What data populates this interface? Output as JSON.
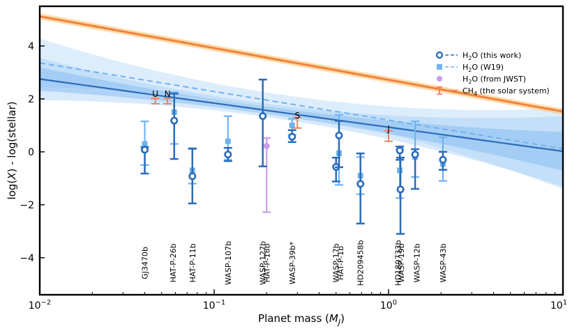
{
  "chart_data": {
    "type": "scatter",
    "xscale": "log",
    "xlim": [
      0.01,
      10
    ],
    "ylim": [
      -5.4,
      5.5
    ],
    "xlabel": "Planet mass (M_J)",
    "xlabel_parts": {
      "prefix": "Planet mass (",
      "var": "M",
      "sub": "J",
      "suffix": ")"
    },
    "ylabel": "log(X) - log(stellar)",
    "ylabel_parts": {
      "prefix": "log(",
      "var": "X",
      "suffix": ") - log(stellar)"
    },
    "xticks": [
      {
        "value": 0.01,
        "base": "10",
        "exp": "−2"
      },
      {
        "value": 0.1,
        "base": "10",
        "exp": "−1"
      },
      {
        "value": 1,
        "base": "10",
        "exp": "0"
      },
      {
        "value": 10,
        "base": "10",
        "exp": "1"
      }
    ],
    "yticks": [
      {
        "value": 4,
        "label": "4"
      },
      {
        "value": 2,
        "label": "2"
      },
      {
        "value": 0,
        "label": "0"
      },
      {
        "value": -2,
        "label": "−2"
      },
      {
        "value": -4,
        "label": "−4"
      }
    ],
    "legend": {
      "position": "top-right",
      "entries": [
        {
          "key": "this_work",
          "label_main": "H",
          "label_sub": "2",
          "label_rest": "O (this work)"
        },
        {
          "key": "w19",
          "label_main": "H",
          "label_sub": "2",
          "label_rest": "O (W19)"
        },
        {
          "key": "jwst",
          "label_main": "H",
          "label_sub": "2",
          "label_rest": "O (from JWST)"
        },
        {
          "key": "solar",
          "label_main": "CH",
          "label_sub": "4",
          "label_rest": " (the solar system)"
        }
      ]
    },
    "colors": {
      "this_work": "#2b6cb8",
      "w19": "#6fb2f0",
      "jwst": "#c89cf0",
      "solar": "#f08060",
      "fit_solar": "#f07a3c",
      "band_solar": "#fcc97a",
      "band_blue": "#9ecbf5"
    },
    "fits": {
      "this_work": {
        "slope": -0.91,
        "intercept": 0.93
      },
      "w19": {
        "slope": -1.08,
        "intercept": 1.2
      },
      "solar": {
        "slope": -1.2,
        "intercept": 2.72
      }
    },
    "this_work_points": [
      {
        "x": 0.04,
        "y": 0.08,
        "yerr_low": 0.9,
        "yerr_high": 0.1
      },
      {
        "x": 0.059,
        "y": 1.18,
        "yerr_low": 1.45,
        "yerr_high": 1.02
      },
      {
        "x": 0.075,
        "y": -0.92,
        "yerr_low": 1.03,
        "yerr_high": 1.05
      },
      {
        "x": 0.12,
        "y": -0.1,
        "yerr_low": 0.25,
        "yerr_high": 0.25
      },
      {
        "x": 0.19,
        "y": 1.35,
        "yerr_low": 1.9,
        "yerr_high": 1.38
      },
      {
        "x": 0.28,
        "y": 0.57,
        "yerr_low": 0.2,
        "yerr_high": 0.25
      },
      {
        "x": 0.5,
        "y": -0.57,
        "yerr_low": 0.55,
        "yerr_high": 0.35
      },
      {
        "x": 0.52,
        "y": 0.62,
        "yerr_low": 1.2,
        "yerr_high": 0.55
      },
      {
        "x": 0.69,
        "y": -1.21,
        "yerr_low": 1.5,
        "yerr_high": 1.15
      },
      {
        "x": 1.16,
        "y": 0.05,
        "yerr_low": 0.35,
        "yerr_high": 0.15
      },
      {
        "x": 1.17,
        "y": -1.42,
        "yerr_low": 1.68,
        "yerr_high": 1.2
      },
      {
        "x": 1.42,
        "y": -0.1,
        "yerr_low": 1.3,
        "yerr_high": 0.2
      },
      {
        "x": 2.05,
        "y": -0.3,
        "yerr_low": 0.38,
        "yerr_high": 0.3
      }
    ],
    "w19_points": [
      {
        "x": 0.04,
        "y": 0.3,
        "yerr_low": 0.8,
        "yerr_high": 0.85
      },
      {
        "x": 0.059,
        "y": 1.5,
        "yerr_low": 1.2,
        "yerr_high": 0.75
      },
      {
        "x": 0.075,
        "y": -0.7,
        "yerr_low": 0.5,
        "yerr_high": 0.8
      },
      {
        "x": 0.12,
        "y": 0.4,
        "yerr_low": 0.7,
        "yerr_high": 0.95
      },
      {
        "x": 0.28,
        "y": 1.0,
        "yerr_low": 0.35,
        "yerr_high": 0.25
      },
      {
        "x": 0.52,
        "y": -0.05,
        "yerr_low": 1.2,
        "yerr_high": 1.45
      },
      {
        "x": 0.69,
        "y": -0.9,
        "yerr_low": 0.7,
        "yerr_high": 0.7
      },
      {
        "x": 1.16,
        "y": -0.7,
        "yerr_low": 1.05,
        "yerr_high": 0.8
      },
      {
        "x": 1.42,
        "y": -0.2,
        "yerr_low": 0.75,
        "yerr_high": 1.35
      },
      {
        "x": 2.05,
        "y": -0.45,
        "yerr_low": 0.65,
        "yerr_high": 1.0
      }
    ],
    "jwst_points": [
      {
        "x": 0.2,
        "y": 0.22,
        "yerr_low": 2.5,
        "yerr_high": 0.3
      }
    ],
    "solar_points": [
      {
        "x": 0.046,
        "y": 1.92,
        "yerr_low": 0.1,
        "yerr_high": 0.1,
        "label": "U"
      },
      {
        "x": 0.054,
        "y": 1.92,
        "yerr_low": 0.1,
        "yerr_high": 0.1,
        "label": "N"
      },
      {
        "x": 0.3,
        "y": 1.1,
        "yerr_low": 0.2,
        "yerr_high": 0.2,
        "label": "S"
      },
      {
        "x": 1.0,
        "y": 0.6,
        "yerr_low": 0.2,
        "yerr_high": 0.2,
        "label": "J"
      }
    ],
    "planet_labels": [
      {
        "x": 0.04,
        "label": "GJ3470b"
      },
      {
        "x": 0.058,
        "label": "HAT-P-26b"
      },
      {
        "x": 0.075,
        "label": "HAT-P-11b"
      },
      {
        "x": 0.12,
        "label": "WASP-107b"
      },
      {
        "x": 0.19,
        "label": "WASP-127b"
      },
      {
        "x": 0.2,
        "label": "HAT-P-18b"
      },
      {
        "x": 0.28,
        "label": "WASP-39b*"
      },
      {
        "x": 0.5,
        "label": "WASP-17b"
      },
      {
        "x": 0.53,
        "label": "HAT-P-1b"
      },
      {
        "x": 0.69,
        "label": "HD209458b"
      },
      {
        "x": 1.13,
        "label": "HD189733b"
      },
      {
        "x": 1.18,
        "label": "WASP-19b"
      },
      {
        "x": 1.45,
        "label": "WASP-12b"
      },
      {
        "x": 2.05,
        "label": "WASP-43b"
      }
    ]
  }
}
